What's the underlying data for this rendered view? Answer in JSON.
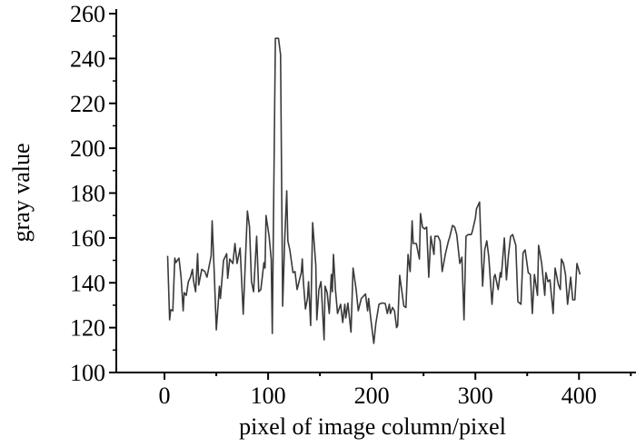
{
  "chart_data": {
    "type": "line",
    "title": "",
    "xlabel": "pixel of image column/pixel",
    "ylabel": "gray value",
    "xlim": [
      -46.5,
      455
    ],
    "ylim": [
      100,
      260
    ],
    "xticks": [
      0,
      100,
      200,
      300,
      400
    ],
    "yticks": [
      100,
      120,
      140,
      160,
      180,
      200,
      220,
      240,
      260
    ],
    "grid": false,
    "line_color": "#3a3a3a",
    "series": [
      {
        "x": [
          3,
          5,
          6,
          8,
          10,
          11,
          14,
          16,
          18,
          19,
          21,
          23,
          25,
          27,
          28,
          30,
          32,
          33,
          36,
          39,
          41,
          45,
          46,
          48,
          50,
          53,
          54,
          57,
          60,
          61,
          63,
          66,
          68,
          70,
          73,
          76,
          80,
          82,
          84,
          86,
          89,
          91,
          93,
          96,
          97,
          98,
          101,
          103,
          104,
          107,
          110,
          112,
          114,
          116,
          118,
          119,
          121,
          124,
          126,
          128,
          132,
          133,
          134,
          136,
          138,
          139,
          141,
          143,
          146,
          147,
          149,
          151,
          154,
          155,
          157,
          159,
          161,
          162,
          163,
          165,
          167,
          170,
          172,
          174,
          175,
          177,
          180,
          182,
          185,
          187,
          190,
          194,
          196,
          197,
          199,
          202,
          204,
          207,
          210,
          213,
          215,
          217,
          218,
          220,
          222,
          224,
          225,
          227,
          231,
          233,
          235,
          237,
          239,
          240,
          243,
          246,
          247,
          249,
          251,
          253,
          255,
          257,
          260,
          261,
          264,
          266,
          268,
          271,
          274,
          275,
          278,
          280,
          282,
          285,
          287,
          289,
          291,
          293,
          296,
          297,
          300,
          301,
          304,
          305,
          307,
          309,
          311,
          313,
          316,
          318,
          319,
          322,
          324,
          325,
          328,
          330,
          332,
          334,
          336,
          339,
          341,
          344,
          346,
          348,
          351,
          353,
          355,
          357,
          360,
          361,
          364,
          367,
          368,
          370,
          372,
          375,
          377,
          380,
          382,
          383,
          385,
          387,
          389,
          392,
          394,
          396,
          398,
          401
        ],
        "y": [
          152,
          123.5,
          128,
          127.5,
          151,
          149,
          151,
          142.5,
          127.5,
          135.6,
          134.4,
          140.5,
          142.5,
          146,
          141,
          136,
          153,
          139,
          146,
          145,
          142.5,
          152,
          167.6,
          144.5,
          119,
          138.5,
          133,
          150,
          153,
          142,
          150.6,
          148.6,
          157.5,
          148.6,
          155.5,
          126,
          172,
          165,
          140.5,
          136,
          160.7,
          136,
          137,
          149,
          146.6,
          170,
          160.7,
          150.6,
          117.4,
          249,
          249,
          241.7,
          129.6,
          158.7,
          181,
          158.7,
          154.7,
          144.5,
          145,
          137,
          144.5,
          150.6,
          140.5,
          128.3,
          133,
          140.5,
          121,
          166.8,
          147.8,
          123.5,
          137,
          140.5,
          114.6,
          138.5,
          135.6,
          126.3,
          143.7,
          136,
          152.6,
          137,
          126.3,
          130.4,
          122.3,
          130.4,
          124.3,
          131,
          118,
          146.6,
          137,
          127.5,
          133,
          135,
          127.5,
          133,
          124.3,
          113,
          122,
          130.4,
          131,
          130.8,
          126.3,
          130.4,
          126.3,
          129,
          127.5,
          120,
          121,
          143.3,
          129.6,
          129,
          152.6,
          145,
          167.6,
          157.5,
          157.5,
          150.6,
          170.9,
          164.8,
          164,
          164.8,
          142.5,
          160.7,
          152.6,
          160.7,
          160.7,
          158.7,
          145,
          152.6,
          158.7,
          160,
          165.6,
          164.8,
          161.5,
          148.6,
          151.4,
          123.5,
          160.7,
          161.5,
          161.5,
          162.8,
          168.8,
          172.9,
          176,
          162.8,
          138.5,
          154.7,
          158.7,
          151.4,
          130.4,
          142.5,
          143.7,
          137,
          144.5,
          142.5,
          160,
          141.3,
          152.6,
          160.7,
          161.5,
          156.7,
          131.6,
          130.4,
          153.4,
          154.7,
          144.5,
          143.7,
          126.3,
          143.7,
          134.4,
          156.7,
          148.6,
          134.4,
          144.5,
          140.5,
          141.3,
          126.3,
          146.6,
          139.3,
          137,
          150.6,
          148.6,
          143.7,
          130.4,
          142.5,
          132.4,
          132.4,
          148.6,
          143.7
        ]
      }
    ]
  }
}
